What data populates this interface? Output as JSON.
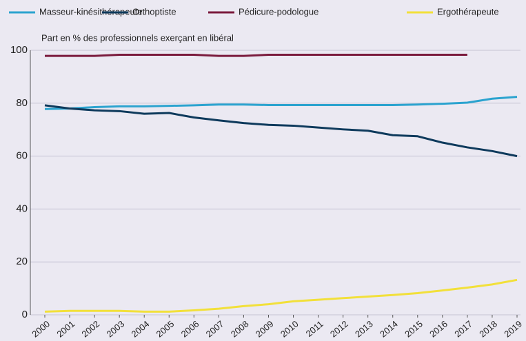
{
  "chart_data": {
    "type": "line",
    "y_axis_label": "Part en % des professionnels exerçant en libéral",
    "categories": [
      "2000",
      "2001",
      "2002",
      "2003",
      "2004",
      "2005",
      "2006",
      "2007",
      "2008",
      "2009",
      "2010",
      "2011",
      "2012",
      "2013",
      "2014",
      "2015",
      "2016",
      "2017",
      "2018",
      "2019"
    ],
    "series": [
      {
        "name": "Masseur-kinésithérapeute",
        "color": "#2ba3cf",
        "values": [
          77.8,
          78,
          78.5,
          78.8,
          78.8,
          79,
          79.2,
          79.5,
          79.5,
          79.3,
          79.3,
          79.3,
          79.3,
          79.3,
          79.3,
          79.5,
          79.8,
          80.2,
          81.7,
          82.4
        ]
      },
      {
        "name": "Orthoptiste",
        "color": "#0e3a5c",
        "values": [
          79.2,
          78,
          77.3,
          77,
          76,
          76.3,
          74.6,
          73.5,
          72.5,
          71.8,
          71.5,
          70.8,
          70.1,
          69.6,
          67.9,
          67.5,
          65.1,
          63.3,
          61.9,
          60
        ]
      },
      {
        "name": "Pédicure-podologue",
        "color": "#7a1a3c",
        "values": [
          97.9,
          97.9,
          97.9,
          98.3,
          98.3,
          98.3,
          98.3,
          97.9,
          97.9,
          98.3,
          98.3,
          98.3,
          98.3,
          98.3,
          98.3,
          98.3,
          98.3,
          98.3,
          null,
          null
        ]
      },
      {
        "name": "Ergothérapeute",
        "color": "#f2e03a",
        "values": [
          1.2,
          1.5,
          1.5,
          1.5,
          1.2,
          1.2,
          1.7,
          2.3,
          3.3,
          4,
          5.1,
          5.7,
          6.3,
          6.9,
          7.5,
          8.2,
          9.2,
          10.3,
          11.5,
          13.2
        ]
      }
    ],
    "ylim": [
      0,
      100
    ],
    "yticks": [
      0,
      20,
      40,
      60,
      80,
      100
    ],
    "grid": true,
    "legend": "top"
  }
}
